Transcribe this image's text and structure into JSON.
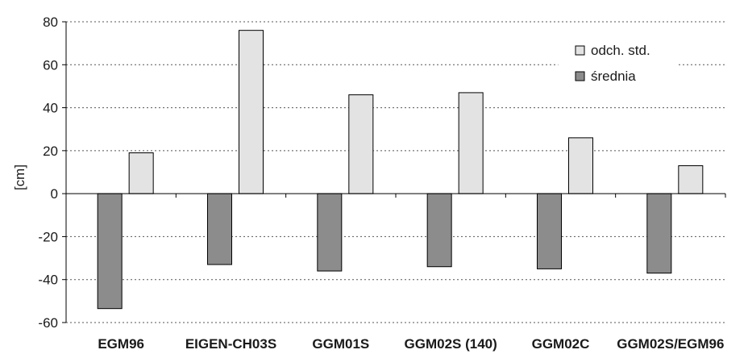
{
  "chart_data": {
    "type": "bar",
    "ylabel": "[cm]",
    "ylim": [
      -60,
      80
    ],
    "yticks": [
      80,
      60,
      40,
      20,
      0,
      -20,
      -40,
      -60
    ],
    "grid": "horizontal dotted",
    "legend_position": "top-right",
    "categories": [
      "EGM96",
      "EIGEN-CH03S",
      "GGM01S",
      "GGM02S (140)",
      "GGM02C",
      "GGM02S/EGM96"
    ],
    "series": [
      {
        "name": "średnia",
        "color": "#8c8c8c",
        "values": [
          -53.5,
          -33,
          -36,
          -34,
          -35,
          -37
        ]
      },
      {
        "name": "odch. std.",
        "color": "#e3e3e3",
        "values": [
          19,
          76,
          46,
          47,
          26,
          13
        ]
      }
    ],
    "legend_order": [
      "odch. std.",
      "średnia"
    ]
  }
}
